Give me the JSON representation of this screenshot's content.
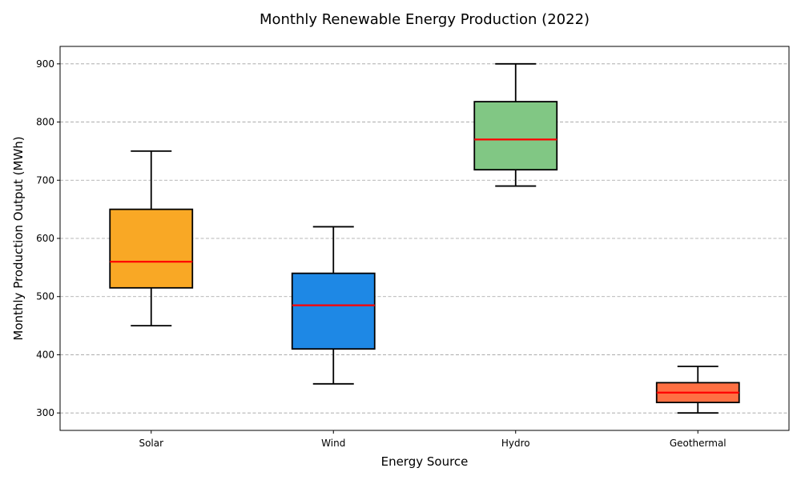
{
  "chart_data": {
    "type": "box",
    "title": "Monthly Renewable Energy Production (2022)",
    "xlabel": "Energy Source",
    "ylabel": "Monthly Production Output (MWh)",
    "ylim": [
      270,
      930
    ],
    "yticks": [
      300,
      400,
      500,
      600,
      700,
      800,
      900
    ],
    "grid": "horizontal-dashed",
    "median_color": "#ff0000",
    "categories": [
      "Solar",
      "Wind",
      "Hydro",
      "Geothermal"
    ],
    "boxes": [
      {
        "category": "Solar",
        "min": 450,
        "q1": 515,
        "median": 560,
        "q3": 650,
        "max": 750,
        "color": "#f9a825"
      },
      {
        "category": "Wind",
        "min": 350,
        "q1": 410,
        "median": 485,
        "q3": 540,
        "max": 620,
        "color": "#1e88e5"
      },
      {
        "category": "Hydro",
        "min": 690,
        "q1": 718,
        "median": 770,
        "q3": 835,
        "max": 900,
        "color": "#81c784"
      },
      {
        "category": "Geothermal",
        "min": 300,
        "q1": 318,
        "median": 335,
        "q3": 352,
        "max": 380,
        "color": "#ff7043"
      }
    ]
  }
}
